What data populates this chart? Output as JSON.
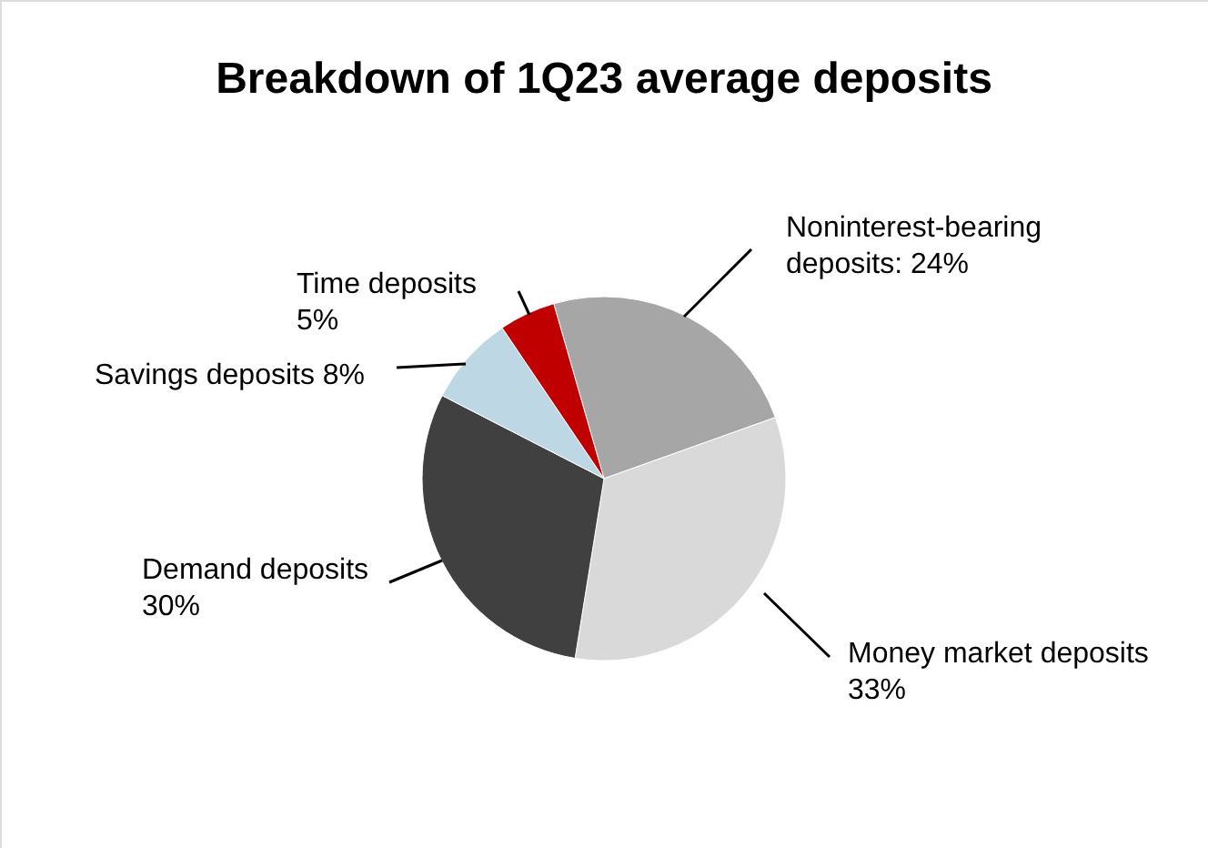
{
  "chart_data": {
    "type": "pie",
    "title": "Breakdown of 1Q23 average deposits",
    "categories": [
      "Noninterest-bearing deposits",
      "Money market deposits",
      "Demand deposits",
      "Savings deposits",
      "Time deposits"
    ],
    "values": [
      24,
      33,
      30,
      8,
      5
    ],
    "value_labels": [
      "24%",
      "33%",
      "30%",
      "8%",
      "5%"
    ],
    "colors": [
      "#a6a6a6",
      "#d9d9d9",
      "#404040",
      "#bdd7e4",
      "#c00000"
    ]
  }
}
